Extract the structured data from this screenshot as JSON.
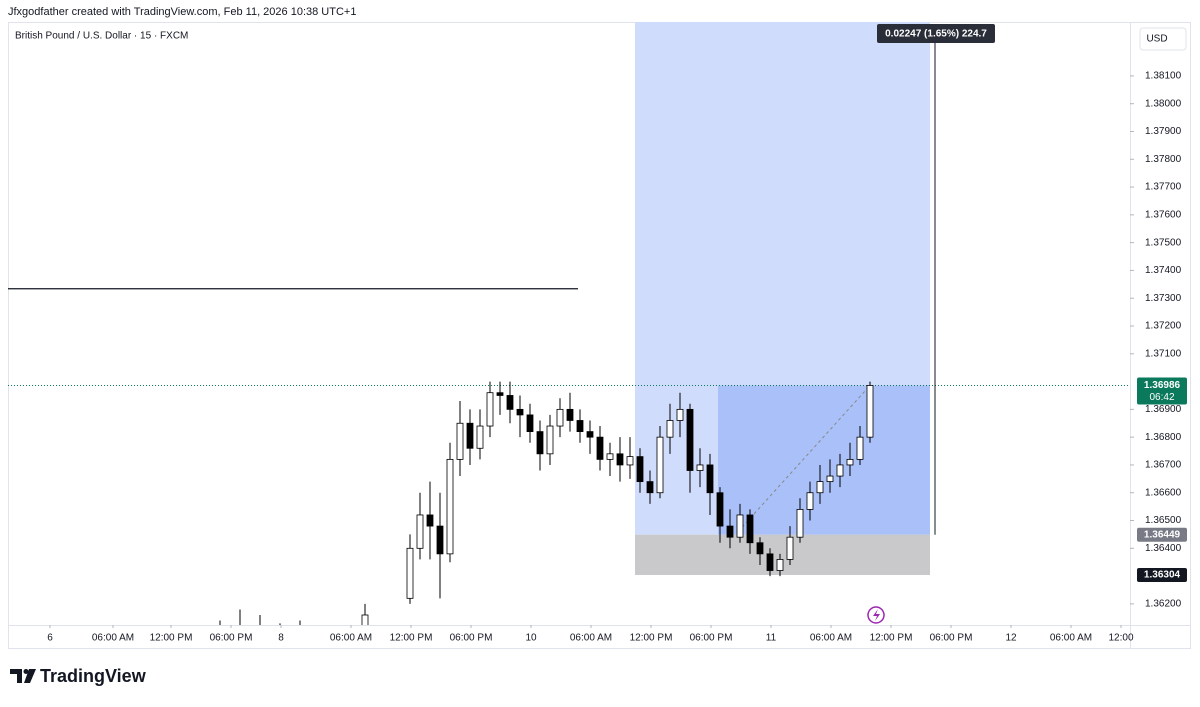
{
  "chart_data": {
    "type": "candlestick",
    "header": "Jfxgodfather created with TradingView.com, Feb 11, 2026 10:38 UTC+1",
    "title": "British Pound / U.S. Dollar · 15 · FXCM",
    "currency": "USD",
    "brand": "TradingView",
    "countdown": "06:42",
    "x": [
      21.2,
      23.2,
      25.2,
      27.2,
      29.2,
      35.7,
      40.2,
      41.2,
      42.2,
      43.2,
      44.2,
      45.2,
      46.2,
      47.2,
      48.2,
      49.2,
      50.2,
      51.2,
      52.2,
      53.2,
      54.2,
      55.2,
      56.2,
      57.2,
      58.2,
      59.2,
      60.2,
      61.2,
      62.2,
      63.2,
      64.2,
      65.2,
      66.2,
      67.2,
      68.2,
      69.2,
      70.2,
      71.2,
      72.2,
      73.2,
      74.2,
      75.2,
      76.2,
      77.2,
      78.2,
      79.2,
      80.2,
      81.2,
      82.2,
      83.2,
      84.2,
      85.2,
      86.2
    ],
    "open": [
      1.3608,
      1.361,
      1.3612,
      1.3609,
      1.3606,
      1.3607,
      1.3622,
      1.364,
      1.3652,
      1.3648,
      1.3638,
      1.3672,
      1.3685,
      1.3676,
      1.3684,
      1.3696,
      1.3695,
      1.369,
      1.3688,
      1.3682,
      1.3674,
      1.3684,
      1.369,
      1.3686,
      1.3682,
      1.368,
      1.3672,
      1.3674,
      1.367,
      1.3673,
      1.3664,
      1.366,
      1.368,
      1.3686,
      1.369,
      1.3668,
      1.367,
      1.366,
      1.3648,
      1.3644,
      1.3652,
      1.3642,
      1.3638,
      1.3632,
      1.3636,
      1.3644,
      1.3654,
      1.366,
      1.3664,
      1.3666,
      1.367,
      1.3672,
      1.368
    ],
    "high": [
      1.3614,
      1.3618,
      1.3616,
      1.3613,
      1.3614,
      1.362,
      1.3645,
      1.366,
      1.3664,
      1.366,
      1.3678,
      1.3693,
      1.369,
      1.369,
      1.37,
      1.37,
      1.37,
      1.3695,
      1.3692,
      1.3686,
      1.3688,
      1.3694,
      1.3696,
      1.369,
      1.3686,
      1.3684,
      1.3678,
      1.368,
      1.368,
      1.3676,
      1.3668,
      1.3684,
      1.3692,
      1.3696,
      1.3692,
      1.3676,
      1.3674,
      1.3662,
      1.3654,
      1.3656,
      1.3654,
      1.3644,
      1.364,
      1.3638,
      1.3648,
      1.3658,
      1.3664,
      1.367,
      1.3672,
      1.3674,
      1.3678,
      1.3684,
      1.37
    ],
    "low": [
      1.36,
      1.3602,
      1.3604,
      1.36,
      1.3598,
      1.36,
      1.362,
      1.3636,
      1.3636,
      1.3622,
      1.3635,
      1.3666,
      1.367,
      1.3672,
      1.368,
      1.3688,
      1.3685,
      1.368,
      1.3678,
      1.3668,
      1.367,
      1.368,
      1.3682,
      1.3678,
      1.3674,
      1.3668,
      1.3666,
      1.3664,
      1.3665,
      1.366,
      1.3656,
      1.3658,
      1.3674,
      1.368,
      1.366,
      1.3662,
      1.3652,
      1.3642,
      1.364,
      1.3642,
      1.3638,
      1.3634,
      1.363,
      1.363,
      1.3634,
      1.3642,
      1.365,
      1.3656,
      1.366,
      1.3662,
      1.3666,
      1.367,
      1.3678
    ],
    "close": [
      1.3612,
      1.3606,
      1.3609,
      1.3606,
      1.361,
      1.3616,
      1.364,
      1.3652,
      1.3648,
      1.3638,
      1.3672,
      1.3685,
      1.3676,
      1.3684,
      1.3696,
      1.3695,
      1.369,
      1.3688,
      1.3682,
      1.3674,
      1.3684,
      1.369,
      1.3686,
      1.3682,
      1.368,
      1.3672,
      1.3674,
      1.367,
      1.3673,
      1.3664,
      1.366,
      1.368,
      1.3686,
      1.369,
      1.3668,
      1.367,
      1.366,
      1.3648,
      1.3644,
      1.3652,
      1.3642,
      1.3638,
      1.3632,
      1.3636,
      1.3644,
      1.3654,
      1.366,
      1.3664,
      1.3666,
      1.367,
      1.3672,
      1.368,
      1.36986
    ],
    "xlim": [
      0,
      112.2
    ],
    "xticks": [
      {
        "value": 4.2,
        "label": "6"
      },
      {
        "value": 10.5,
        "label": "06:00 AM"
      },
      {
        "value": 16.3,
        "label": "12:00 PM"
      },
      {
        "value": 22.3,
        "label": "06:00 PM"
      },
      {
        "value": 27.3,
        "label": "8"
      },
      {
        "value": 34.3,
        "label": "06:00 AM"
      },
      {
        "value": 40.3,
        "label": "12:00 PM"
      },
      {
        "value": 46.3,
        "label": "06:00 PM"
      },
      {
        "value": 52.3,
        "label": "10"
      },
      {
        "value": 58.3,
        "label": "06:00 AM"
      },
      {
        "value": 64.3,
        "label": "12:00 PM"
      },
      {
        "value": 70.3,
        "label": "06:00 PM"
      },
      {
        "value": 76.3,
        "label": "11"
      },
      {
        "value": 82.3,
        "label": "06:00 AM"
      },
      {
        "value": 88.3,
        "label": "12:00 PM"
      },
      {
        "value": 94.3,
        "label": "06:00 PM"
      },
      {
        "value": 100.3,
        "label": "12"
      },
      {
        "value": 106.3,
        "label": "06:00 AM"
      },
      {
        "value": 111.3,
        "label": "12:00"
      }
    ],
    "ylim": [
      1.36124,
      1.38294
    ],
    "yticks": [
      {
        "value": 1.362,
        "label": "1.36200"
      },
      {
        "value": 1.364,
        "label": "1.36400"
      },
      {
        "value": 1.365,
        "label": "1.36500"
      },
      {
        "value": 1.366,
        "label": "1.36600"
      },
      {
        "value": 1.367,
        "label": "1.36700"
      },
      {
        "value": 1.368,
        "label": "1.36800"
      },
      {
        "value": 1.369,
        "label": "1.36900"
      },
      {
        "value": 1.371,
        "label": "1.37100"
      },
      {
        "value": 1.372,
        "label": "1.37200"
      },
      {
        "value": 1.373,
        "label": "1.37300"
      },
      {
        "value": 1.374,
        "label": "1.37400"
      },
      {
        "value": 1.375,
        "label": "1.37500"
      },
      {
        "value": 1.376,
        "label": "1.37600"
      },
      {
        "value": 1.377,
        "label": "1.37700"
      },
      {
        "value": 1.378,
        "label": "1.37800"
      },
      {
        "value": 1.379,
        "label": "1.37900"
      },
      {
        "value": 1.38,
        "label": "1.38000"
      },
      {
        "value": 1.381,
        "label": "1.38100"
      }
    ],
    "grid": false,
    "hline": {
      "value": 1.37334,
      "start": 0,
      "end": 57
    },
    "position": {
      "entry": 1.36449,
      "stop": 1.36304,
      "target": 1.38696,
      "start": 62.7,
      "end": 92.2,
      "entry_time": 71.0,
      "label": "0.02247 (1.65%) 224.7"
    },
    "up_color": "#ffffff",
    "down_color": "#000000",
    "wick_color": "#000000",
    "price_badge_color": "#0b7a5c"
  }
}
